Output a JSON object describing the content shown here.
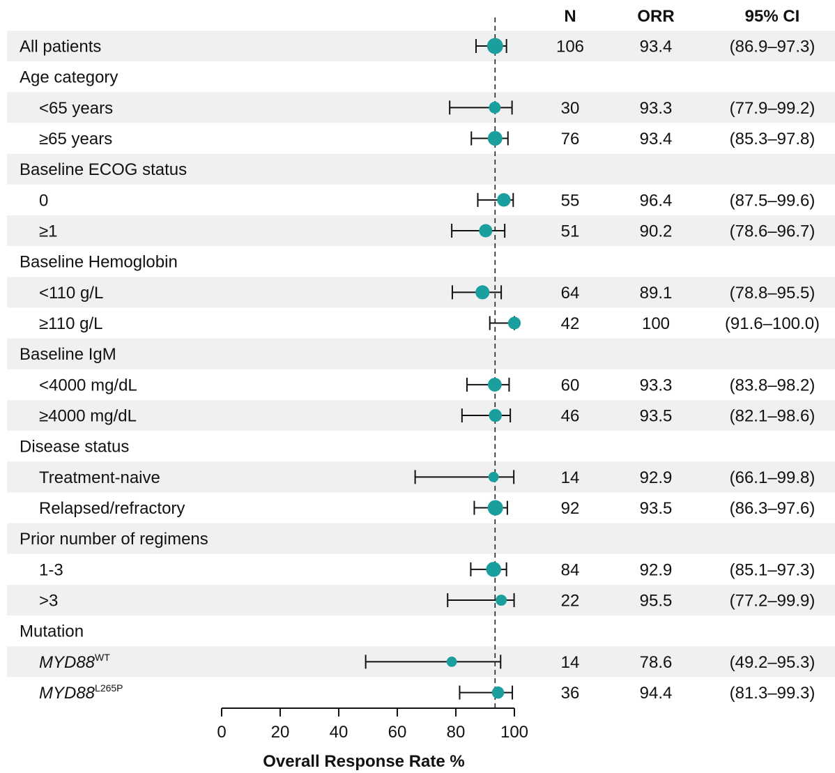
{
  "chart_data": {
    "type": "forest",
    "columns": {
      "n": "N",
      "orr": "ORR",
      "ci": "95% CI"
    },
    "xlabel": "Overall Response Rate %",
    "xlim": [
      0,
      100
    ],
    "xticks": [
      0,
      20,
      40,
      60,
      80,
      100
    ],
    "reference_line": 93.4,
    "marker_color": "#1a9e9e",
    "stripe_color": "#f0f0f0",
    "rows": [
      {
        "label": "All patients",
        "header": false,
        "indent": false,
        "shaded": true,
        "n": "106",
        "orr": "93.4",
        "ci": "(86.9–97.3)",
        "estimate": 93.4,
        "lower": 86.9,
        "upper": 97.3
      },
      {
        "label": "Age category",
        "header": true,
        "shaded": false
      },
      {
        "label": "<65 years",
        "indent": true,
        "shaded": true,
        "n": "30",
        "orr": "93.3",
        "ci": "(77.9–99.2)",
        "estimate": 93.3,
        "lower": 77.9,
        "upper": 99.2
      },
      {
        "label": "≥65 years",
        "indent": true,
        "shaded": false,
        "n": "76",
        "orr": "93.4",
        "ci": "(85.3–97.8)",
        "estimate": 93.4,
        "lower": 85.3,
        "upper": 97.8
      },
      {
        "label": "Baseline ECOG status",
        "header": true,
        "shaded": true
      },
      {
        "label": "0",
        "indent": true,
        "shaded": false,
        "n": "55",
        "orr": "96.4",
        "ci": "(87.5–99.6)",
        "estimate": 96.4,
        "lower": 87.5,
        "upper": 99.6
      },
      {
        "label": "≥1",
        "indent": true,
        "shaded": true,
        "n": "51",
        "orr": "90.2",
        "ci": "(78.6–96.7)",
        "estimate": 90.2,
        "lower": 78.6,
        "upper": 96.7
      },
      {
        "label": "Baseline Hemoglobin",
        "header": true,
        "shaded": false
      },
      {
        "label": "<110 g/L",
        "indent": true,
        "shaded": true,
        "n": "64",
        "orr": "89.1",
        "ci": "(78.8–95.5)",
        "estimate": 89.1,
        "lower": 78.8,
        "upper": 95.5
      },
      {
        "label": "≥110 g/L",
        "indent": true,
        "shaded": false,
        "n": "42",
        "orr": "100",
        "ci": "(91.6–100.0)",
        "estimate": 100,
        "lower": 91.6,
        "upper": 100
      },
      {
        "label": "Baseline IgM",
        "header": true,
        "shaded": true
      },
      {
        "label": "<4000 mg/dL",
        "indent": true,
        "shaded": false,
        "n": "60",
        "orr": "93.3",
        "ci": "(83.8–98.2)",
        "estimate": 93.3,
        "lower": 83.8,
        "upper": 98.2
      },
      {
        "label": "≥4000 mg/dL",
        "indent": true,
        "shaded": true,
        "n": "46",
        "orr": "93.5",
        "ci": "(82.1–98.6)",
        "estimate": 93.5,
        "lower": 82.1,
        "upper": 98.6
      },
      {
        "label": "Disease status",
        "header": true,
        "shaded": false
      },
      {
        "label": "Treatment-naive",
        "indent": true,
        "shaded": true,
        "n": "14",
        "orr": "92.9",
        "ci": "(66.1–99.8)",
        "estimate": 92.9,
        "lower": 66.1,
        "upper": 99.8
      },
      {
        "label": "Relapsed/refractory",
        "indent": true,
        "shaded": false,
        "n": "92",
        "orr": "93.5",
        "ci": "(86.3–97.6)",
        "estimate": 93.5,
        "lower": 86.3,
        "upper": 97.6
      },
      {
        "label": "Prior number of regimens",
        "header": true,
        "shaded": true
      },
      {
        "label": "1-3",
        "indent": true,
        "shaded": false,
        "n": "84",
        "orr": "92.9",
        "ci": "(85.1–97.3)",
        "estimate": 92.9,
        "lower": 85.1,
        "upper": 97.3
      },
      {
        "label": ">3",
        "indent": true,
        "shaded": true,
        "n": "22",
        "orr": "95.5",
        "ci": "(77.2–99.9)",
        "estimate": 95.5,
        "lower": 77.2,
        "upper": 99.9
      },
      {
        "label": "Mutation",
        "header": true,
        "shaded": false
      },
      {
        "label": "MYD88",
        "sup": "WT",
        "italic": true,
        "indent": true,
        "shaded": true,
        "n": "14",
        "orr": "78.6",
        "ci": "(49.2–95.3)",
        "estimate": 78.6,
        "lower": 49.2,
        "upper": 95.3
      },
      {
        "label": "MYD88",
        "sup": "L265P",
        "italic": true,
        "indent": true,
        "shaded": false,
        "n": "36",
        "orr": "94.4",
        "ci": "(81.3–99.3)",
        "estimate": 94.4,
        "lower": 81.3,
        "upper": 99.3
      }
    ]
  }
}
